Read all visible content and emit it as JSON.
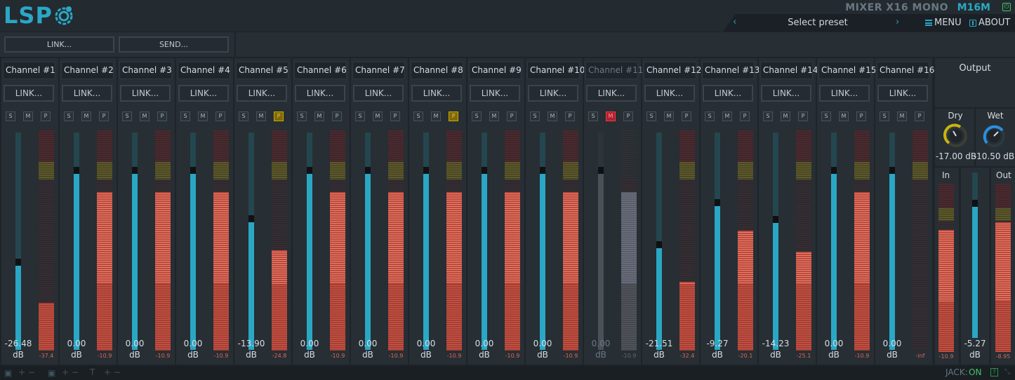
{
  "header": {
    "logo_text": "LSP",
    "plugin_title": "MIXER X16 MONO",
    "plugin_code": "M16M",
    "preset_label": "Select preset",
    "menu_label": "MENU",
    "about_label": "ABOUT"
  },
  "toolbar": {
    "link_label": "LINK...",
    "send_label": "SEND..."
  },
  "colors": {
    "accent": "#2aa7c4",
    "solo_active": "#c9a70c",
    "mute_active": "#e0404b",
    "meter": "#e08a70"
  },
  "channels": [
    {
      "name": "Channel #1",
      "link": "LINK...",
      "s": "S",
      "m": "M",
      "p": "P",
      "gain": "-26.48",
      "unit": "dB",
      "peak": "-37.4",
      "state": ""
    },
    {
      "name": "Channel #2",
      "link": "LINK...",
      "s": "S",
      "m": "M",
      "p": "P",
      "gain": "0.00",
      "unit": "dB",
      "peak": "-10.9",
      "state": ""
    },
    {
      "name": "Channel #3",
      "link": "LINK...",
      "s": "S",
      "m": "M",
      "p": "P",
      "gain": "0.00",
      "unit": "dB",
      "peak": "-10.9",
      "state": ""
    },
    {
      "name": "Channel #4",
      "link": "LINK...",
      "s": "S",
      "m": "M",
      "p": "P",
      "gain": "0.00",
      "unit": "dB",
      "peak": "-10.9",
      "state": ""
    },
    {
      "name": "Channel #5",
      "link": "LINK...",
      "s": "S",
      "m": "M",
      "p": "P",
      "gain": "-13.90",
      "unit": "dB",
      "peak": "-24.8",
      "state": "phase"
    },
    {
      "name": "Channel #6",
      "link": "LINK...",
      "s": "S",
      "m": "M",
      "p": "P",
      "gain": "0.00",
      "unit": "dB",
      "peak": "-10.9",
      "state": ""
    },
    {
      "name": "Channel #7",
      "link": "LINK...",
      "s": "S",
      "m": "M",
      "p": "P",
      "gain": "0.00",
      "unit": "dB",
      "peak": "-10.9",
      "state": ""
    },
    {
      "name": "Channel #8",
      "link": "LINK...",
      "s": "S",
      "m": "M",
      "p": "P",
      "gain": "0.00",
      "unit": "dB",
      "peak": "-10.9",
      "state": "phase"
    },
    {
      "name": "Channel #9",
      "link": "LINK...",
      "s": "S",
      "m": "M",
      "p": "P",
      "gain": "0.00",
      "unit": "dB",
      "peak": "-10.9",
      "state": ""
    },
    {
      "name": "Channel #10",
      "link": "LINK...",
      "s": "S",
      "m": "M",
      "p": "P",
      "gain": "0.00",
      "unit": "dB",
      "peak": "-10.9",
      "state": ""
    },
    {
      "name": "Channel #11",
      "link": "LINK...",
      "s": "S",
      "m": "M",
      "p": "P",
      "gain": "0.00",
      "unit": "dB",
      "peak": "-10.9",
      "state": "mute"
    },
    {
      "name": "Channel #12",
      "link": "LINK...",
      "s": "S",
      "m": "M",
      "p": "P",
      "gain": "-21.51",
      "unit": "dB",
      "peak": "-32.4",
      "state": ""
    },
    {
      "name": "Channel #13",
      "link": "LINK...",
      "s": "S",
      "m": "M",
      "p": "P",
      "gain": "-9.27",
      "unit": "dB",
      "peak": "-20.1",
      "state": ""
    },
    {
      "name": "Channel #14",
      "link": "LINK...",
      "s": "S",
      "m": "M",
      "p": "P",
      "gain": "-14.23",
      "unit": "dB",
      "peak": "-25.1",
      "state": ""
    },
    {
      "name": "Channel #15",
      "link": "LINK...",
      "s": "S",
      "m": "M",
      "p": "P",
      "gain": "0.00",
      "unit": "dB",
      "peak": "-10.9",
      "state": ""
    },
    {
      "name": "Channel #16",
      "link": "LINK...",
      "s": "S",
      "m": "M",
      "p": "P",
      "gain": "0.00",
      "unit": "dB",
      "peak": "-inf",
      "state": ""
    }
  ],
  "output": {
    "title": "Output",
    "dry_label": "Dry",
    "dry_value": "-17.00 dB",
    "wet_label": "Wet",
    "wet_value": "-10.50 dB",
    "in_label": "In",
    "in_peak": "-10.9",
    "out_label": "Out",
    "out_peak": "-8.95",
    "gain": "-5.27",
    "gain_unit": "dB"
  },
  "statusbar": {
    "jack_label": "JACK:",
    "jack_state": "ON",
    "help_label": "?"
  }
}
